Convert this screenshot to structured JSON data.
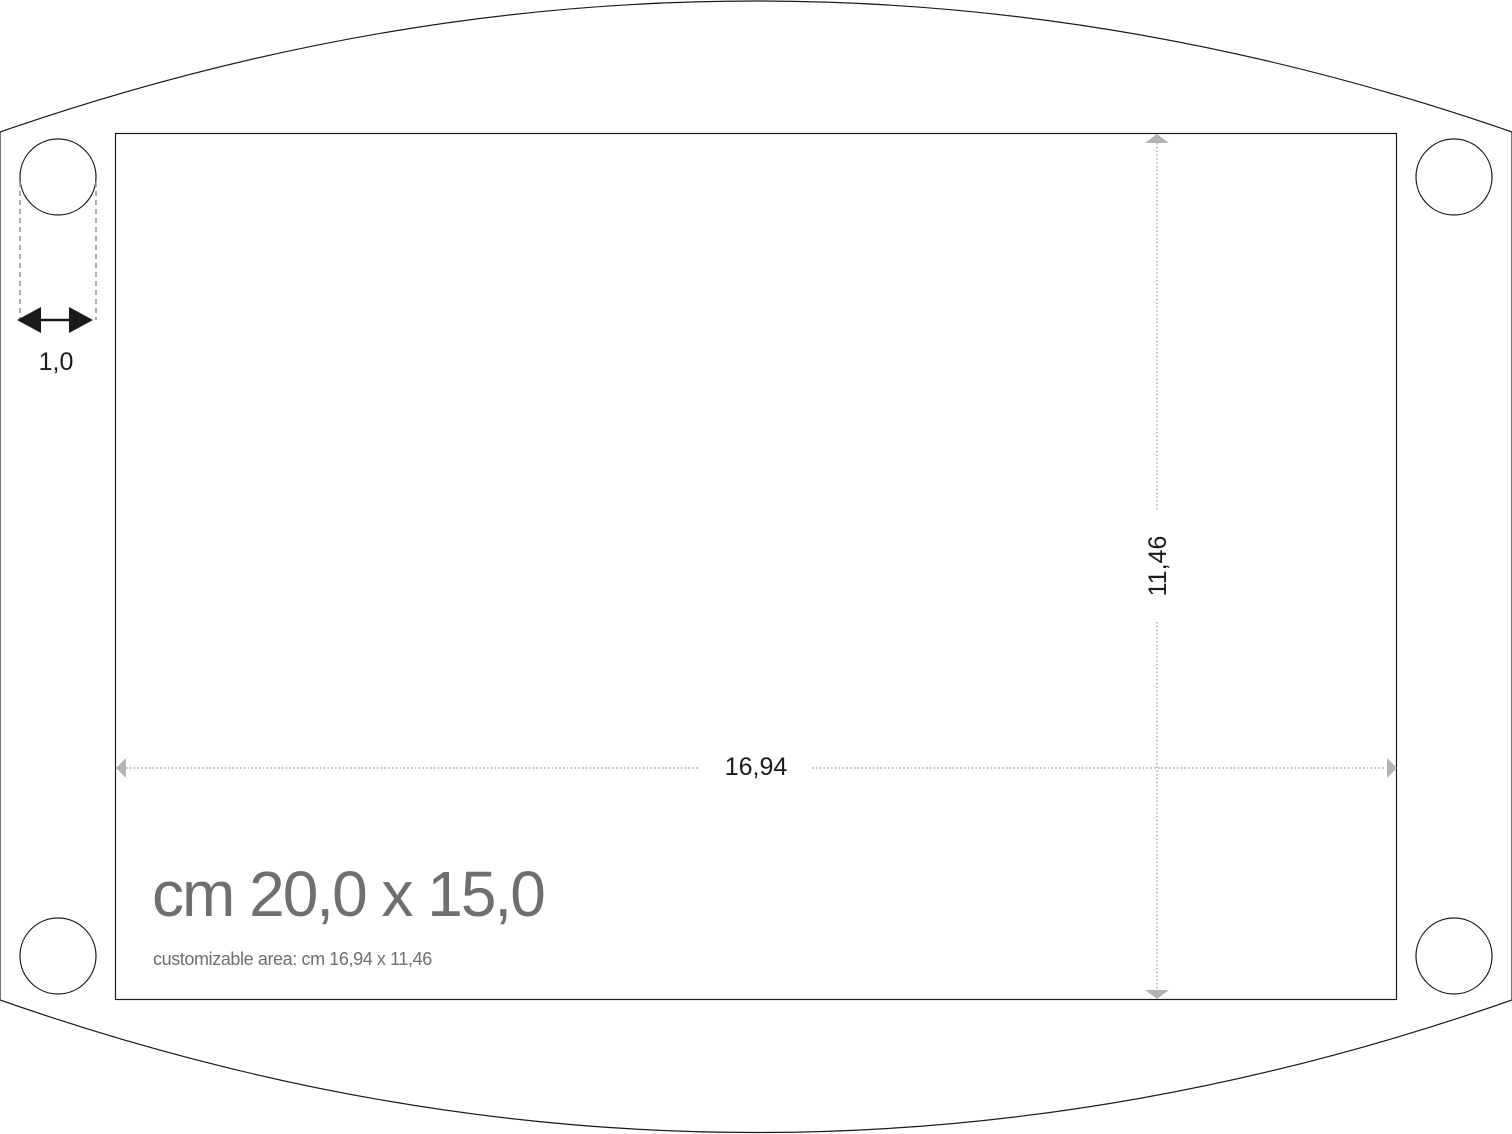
{
  "title": "cm 20,0 x 15,0",
  "subtitle": "customizable area: cm 16,94 x 11,46",
  "dimensions": {
    "width": "16,94",
    "height": "11,46",
    "hole_diameter": "1,0"
  },
  "colors": {
    "outline": "#1a1a1a",
    "dimension_guides": "#a8a8a8",
    "title_text": "#6f6f6f"
  },
  "icons": [
    "double-arrow-icon",
    "arrowhead-icon"
  ]
}
